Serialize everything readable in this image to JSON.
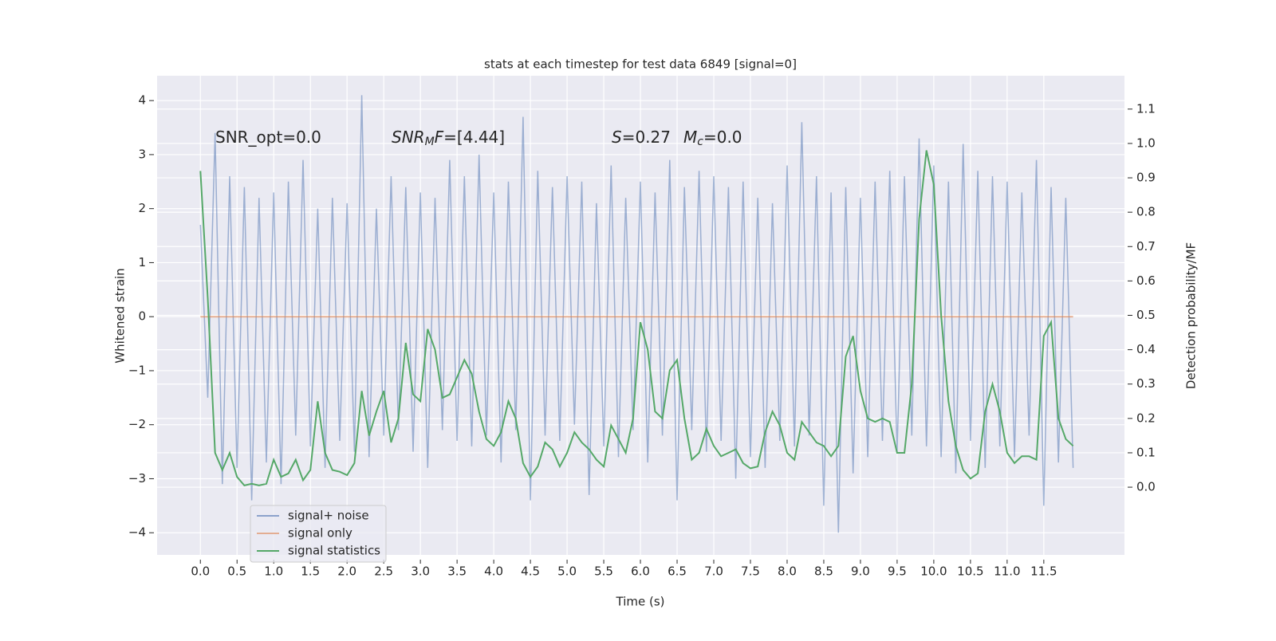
{
  "chart_data": {
    "type": "line",
    "title": "stats at each timestep for test data 6849 [signal=0]",
    "xlabel": "Time (s)",
    "ylabel": "Whitened strain",
    "y2label": "Detection probability/MF",
    "annotations": [
      {
        "segments": [
          {
            "text": "SNR_opt=0.0"
          }
        ]
      },
      {
        "segments": [
          {
            "text": "SNR",
            "style": "italic"
          },
          {
            "text": "M",
            "style": "sub"
          },
          {
            "text": "F",
            "style": "italic"
          },
          {
            "text": "=[4.44]"
          }
        ]
      },
      {
        "segments": [
          {
            "text": "S",
            "style": "italic"
          },
          {
            "text": "=0.27"
          },
          {
            "text": "M",
            "style": "italic",
            "gap": true
          },
          {
            "text": "c",
            "style": "sub"
          },
          {
            "text": "=0.0"
          }
        ]
      }
    ],
    "x": [
      0.0,
      0.1,
      0.2,
      0.3,
      0.4,
      0.5,
      0.6,
      0.7,
      0.8,
      0.9,
      1.0,
      1.1,
      1.2,
      1.3,
      1.4,
      1.5,
      1.6,
      1.7,
      1.8,
      1.9,
      2.0,
      2.1,
      2.2,
      2.3,
      2.4,
      2.5,
      2.6,
      2.7,
      2.8,
      2.9,
      3.0,
      3.1,
      3.2,
      3.3,
      3.4,
      3.5,
      3.6,
      3.7,
      3.8,
      3.9,
      4.0,
      4.1,
      4.2,
      4.3,
      4.4,
      4.5,
      4.6,
      4.7,
      4.8,
      4.9,
      5.0,
      5.1,
      5.2,
      5.3,
      5.4,
      5.5,
      5.6,
      5.7,
      5.8,
      5.9,
      6.0,
      6.1,
      6.2,
      6.3,
      6.4,
      6.5,
      6.6,
      6.7,
      6.8,
      6.9,
      7.0,
      7.1,
      7.2,
      7.3,
      7.4,
      7.5,
      7.6,
      7.7,
      7.8,
      7.9,
      8.0,
      8.1,
      8.2,
      8.3,
      8.4,
      8.5,
      8.6,
      8.7,
      8.8,
      8.9,
      9.0,
      9.1,
      9.2,
      9.3,
      9.4,
      9.5,
      9.6,
      9.7,
      9.8,
      9.9,
      10.0,
      10.1,
      10.2,
      10.3,
      10.4,
      10.5,
      10.6,
      10.7,
      10.8,
      10.9,
      11.0,
      11.1,
      11.2,
      11.3,
      11.4,
      11.5,
      11.6,
      11.7,
      11.8,
      11.9
    ],
    "series": [
      {
        "name": "signal+ noise",
        "color": "#4c72b0",
        "values": [
          1.7,
          -1.5,
          3.4,
          -3.1,
          2.6,
          -2.8,
          2.4,
          -3.4,
          2.2,
          -2.7,
          2.3,
          -3.1,
          2.5,
          -2.2,
          2.9,
          -2.4,
          2.0,
          -2.8,
          2.2,
          -2.3,
          2.1,
          -2.5,
          4.1,
          -2.6,
          2.0,
          -2.2,
          2.6,
          -2.1,
          2.4,
          -2.5,
          2.3,
          -2.8,
          2.2,
          -2.1,
          2.9,
          -2.3,
          2.6,
          -2.4,
          3.0,
          -2.2,
          2.3,
          -2.7,
          2.5,
          -2.1,
          3.7,
          -3.4,
          2.7,
          -2.2,
          2.4,
          -2.3,
          2.6,
          -2.0,
          2.5,
          -3.3,
          2.1,
          -2.4,
          2.8,
          -2.6,
          2.2,
          -2.1,
          2.5,
          -2.7,
          2.3,
          -2.2,
          2.9,
          -3.4,
          2.4,
          -2.1,
          2.7,
          -2.5,
          2.6,
          -2.3,
          2.4,
          -3.0,
          2.5,
          -2.6,
          2.2,
          -2.8,
          2.1,
          -2.3,
          2.8,
          -2.4,
          3.6,
          -2.2,
          2.6,
          -3.5,
          2.3,
          -4.0,
          2.4,
          -2.9,
          2.2,
          -2.6,
          2.5,
          -2.3,
          2.7,
          -2.5,
          2.6,
          -2.2,
          3.3,
          -2.4,
          2.8,
          -2.6,
          2.5,
          -2.9,
          3.2,
          -2.3,
          2.7,
          -2.8,
          2.6,
          -2.4,
          2.5,
          -2.6,
          2.3,
          -2.2,
          2.9,
          -3.5,
          2.4,
          -2.7,
          2.2,
          -2.8
        ]
      },
      {
        "name": "signal only",
        "color": "#dd8452",
        "values": [
          0,
          0,
          0,
          0,
          0,
          0,
          0,
          0,
          0,
          0,
          0,
          0,
          0,
          0,
          0,
          0,
          0,
          0,
          0,
          0,
          0,
          0,
          0,
          0,
          0,
          0,
          0,
          0,
          0,
          0,
          0,
          0,
          0,
          0,
          0,
          0,
          0,
          0,
          0,
          0,
          0,
          0,
          0,
          0,
          0,
          0,
          0,
          0,
          0,
          0,
          0,
          0,
          0,
          0,
          0,
          0,
          0,
          0,
          0,
          0,
          0,
          0,
          0,
          0,
          0,
          0,
          0,
          0,
          0,
          0,
          0,
          0,
          0,
          0,
          0,
          0,
          0,
          0,
          0,
          0,
          0,
          0,
          0,
          0,
          0,
          0,
          0,
          0,
          0,
          0,
          0,
          0,
          0,
          0,
          0,
          0,
          0,
          0,
          0,
          0,
          0,
          0,
          0,
          0,
          0,
          0,
          0,
          0,
          0,
          0,
          0,
          0,
          0,
          0,
          0,
          0,
          0,
          0,
          0,
          0
        ]
      },
      {
        "name": "signal statistics",
        "color": "#55a868",
        "axis": "y2",
        "values": [
          0.92,
          0.55,
          0.1,
          0.05,
          0.1,
          0.03,
          0.005,
          0.01,
          0.005,
          0.01,
          0.08,
          0.03,
          0.04,
          0.08,
          0.02,
          0.05,
          0.25,
          0.1,
          0.05,
          0.045,
          0.035,
          0.07,
          0.28,
          0.15,
          0.22,
          0.28,
          0.13,
          0.2,
          0.42,
          0.27,
          0.25,
          0.46,
          0.4,
          0.26,
          0.27,
          0.32,
          0.37,
          0.33,
          0.22,
          0.14,
          0.12,
          0.16,
          0.25,
          0.2,
          0.07,
          0.03,
          0.06,
          0.13,
          0.11,
          0.06,
          0.1,
          0.16,
          0.13,
          0.11,
          0.08,
          0.06,
          0.18,
          0.14,
          0.1,
          0.2,
          0.48,
          0.4,
          0.22,
          0.2,
          0.34,
          0.37,
          0.2,
          0.08,
          0.1,
          0.17,
          0.12,
          0.09,
          0.1,
          0.11,
          0.07,
          0.055,
          0.06,
          0.16,
          0.22,
          0.18,
          0.1,
          0.08,
          0.19,
          0.16,
          0.13,
          0.12,
          0.09,
          0.12,
          0.38,
          0.44,
          0.28,
          0.2,
          0.19,
          0.2,
          0.19,
          0.1,
          0.1,
          0.3,
          0.78,
          0.98,
          0.88,
          0.5,
          0.25,
          0.12,
          0.05,
          0.025,
          0.04,
          0.22,
          0.3,
          0.22,
          0.1,
          0.07,
          0.09,
          0.09,
          0.08,
          0.44,
          0.48,
          0.2,
          0.14,
          0.12
        ]
      }
    ],
    "xlim": [
      -0.59,
      12.6
    ],
    "ylim": [
      -4.41,
      4.46
    ],
    "y2lim": [
      -0.197,
      1.197
    ],
    "xticks": [
      {
        "value": 0,
        "label": "0.0"
      },
      0.5,
      {
        "value": 1,
        "label": "1.0"
      },
      1.5,
      {
        "value": 2,
        "label": "2.0"
      },
      2.5,
      {
        "value": 3,
        "label": "3.0"
      },
      3.5,
      {
        "value": 4,
        "label": "4.0"
      },
      4.5,
      {
        "value": 5,
        "label": "5.0"
      },
      5.5,
      {
        "value": 6,
        "label": "6.0"
      },
      6.5,
      {
        "value": 7,
        "label": "7.0"
      },
      7.5,
      {
        "value": 8,
        "label": "8.0"
      },
      8.5,
      {
        "value": 9,
        "label": "9.0"
      },
      9.5,
      {
        "value": 10,
        "label": "10.0"
      },
      10.5,
      {
        "value": 11,
        "label": "11.0"
      },
      11.5
    ],
    "yticks": [
      -4,
      -3,
      -2,
      -1,
      0,
      1,
      2,
      3,
      4
    ],
    "y2ticks": [
      {
        "value": 0,
        "label": "0.0"
      },
      0.1,
      0.2,
      0.3,
      0.4,
      0.5,
      0.6,
      0.7,
      0.8,
      0.9,
      {
        "value": 1,
        "label": "1.0"
      },
      1.1
    ],
    "grid": true,
    "legend": "lower left"
  }
}
